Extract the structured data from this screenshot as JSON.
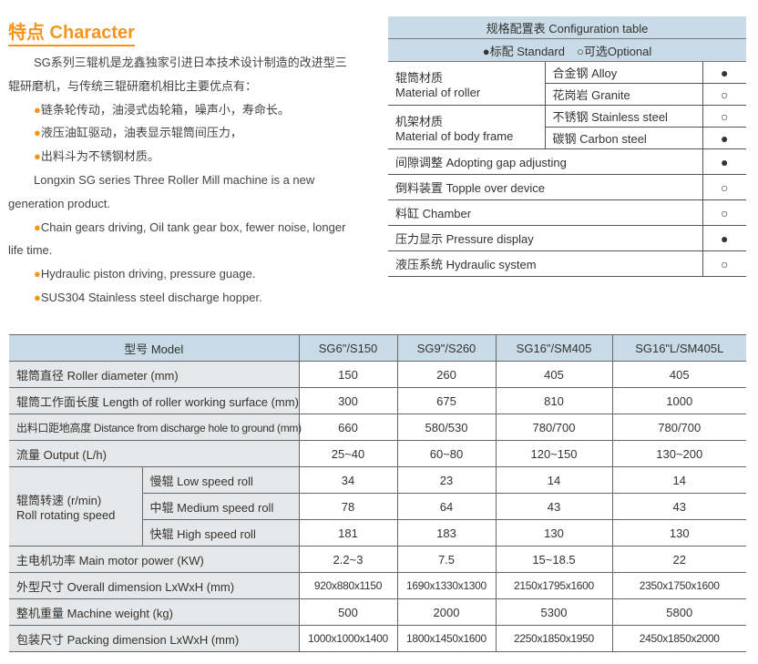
{
  "character": {
    "title": "特点 Character",
    "zh_intro": "SG系列三辊机是龙鑫独家引进日本技术设计制造的改进型三辊研磨机，与传统三辊研磨机相比主要优点有：",
    "zh_bullets": [
      "链条轮传动，油浸式齿轮箱，噪声小，寿命长。",
      "液压油缸驱动，油表显示辊筒间压力，",
      "出料斗为不锈钢材质。"
    ],
    "en_intro": "Longxin SG series Three Roller Mill machine is a new generation product.",
    "en_bullets": [
      "Chain gears driving, Oil tank gear box, fewer noise, longer life time.",
      "Hydraulic piston driving, pressure guage.",
      "SUS304 Stainless steel discharge hopper."
    ],
    "bullet_color": "#f7941d"
  },
  "config": {
    "title": "规格配置表 Configuration table",
    "legend": "●标配 Standard　○可选Optional",
    "groups": [
      {
        "label_zh": "辊筒材质",
        "label_en": "Material of roller",
        "options": [
          {
            "name": "合金钢 Alloy",
            "mark": "●"
          },
          {
            "name": "花岗岩 Granite",
            "mark": "○"
          }
        ]
      },
      {
        "label_zh": "机架材质",
        "label_en": "Material of body frame",
        "options": [
          {
            "name": "不锈钢 Stainless steel",
            "mark": "○"
          },
          {
            "name": "碳钢 Carbon steel",
            "mark": "●"
          }
        ]
      }
    ],
    "items": [
      {
        "name": "间隙调整  Adopting gap adjusting",
        "mark": "●"
      },
      {
        "name": "倒料装置 Topple over device",
        "mark": "○"
      },
      {
        "name": "料缸 Chamber",
        "mark": "○"
      },
      {
        "name": "压力显示 Pressure display",
        "mark": "●"
      },
      {
        "name": "液压系统 Hydraulic system",
        "mark": "○"
      }
    ]
  },
  "spec": {
    "header": "型号 Model",
    "models": [
      "SG6\"/S150",
      "SG9\"/S260",
      "SG16\"/SM405",
      "SG16\"L/SM405L"
    ],
    "rows_top": [
      {
        "label": "辊筒直径 Roller diameter (mm)",
        "values": [
          "150",
          "260",
          "405",
          "405"
        ]
      },
      {
        "label": "辊筒工作面长度 Length of roller working surface (mm)",
        "values": [
          "300",
          "675",
          "810",
          "1000"
        ]
      },
      {
        "label": "出料口距地高度 Distance from discharge hole to ground (mm)",
        "values": [
          "660",
          "580/530",
          "780/700",
          "780/700"
        ]
      },
      {
        "label": "流量 Output (L/h)",
        "values": [
          "25~40",
          "60~80",
          "120~150",
          "130~200"
        ]
      }
    ],
    "speed": {
      "label_zh": "辊筒转速 (r/min)",
      "label_en": "Roll rotating speed",
      "rows": [
        {
          "label": "慢辊 Low speed roll",
          "values": [
            "34",
            "23",
            "14",
            "14"
          ]
        },
        {
          "label": "中辊 Medium speed roll",
          "values": [
            "78",
            "64",
            "43",
            "43"
          ]
        },
        {
          "label": "快辊 High speed roll",
          "values": [
            "181",
            "183",
            "130",
            "130"
          ]
        }
      ]
    },
    "rows_bottom": [
      {
        "label": "主电机功率 Main motor power (KW)",
        "values": [
          "2.2~3",
          "7.5",
          "15~18.5",
          "22"
        ]
      },
      {
        "label": "外型尺寸 Overall dimension LxWxH (mm)",
        "values": [
          "920x880x1150",
          "1690x1330x1300",
          "2150x1795x1600",
          "2350x1750x1600"
        ]
      },
      {
        "label": "整机重量 Machine weight (kg)",
        "values": [
          "500",
          "2000",
          "5300",
          "5800"
        ]
      },
      {
        "label": "包装尺寸 Packing dimension LxWxH (mm)",
        "values": [
          "1000x1000x1400",
          "1800x1450x1600",
          "2250x1850x1950",
          "2450x1850x2000"
        ]
      }
    ]
  }
}
